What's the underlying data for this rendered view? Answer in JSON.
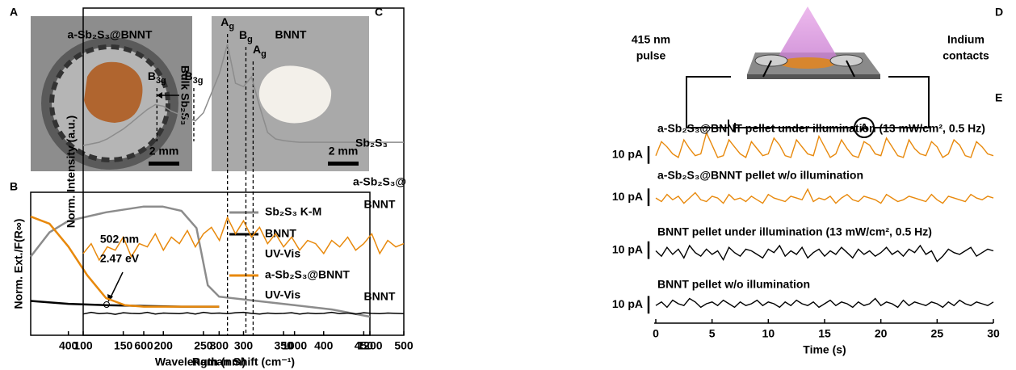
{
  "panel_letters": [
    "A",
    "B",
    "C",
    "D",
    "E"
  ],
  "photos": {
    "left": {
      "title": "a-Sb₂S₃@BNNT",
      "side_label": "Bulk Sb₂S₃",
      "scale": "2 mm"
    },
    "right": {
      "title": "BNNT",
      "scale": "2 mm"
    }
  },
  "diagram": {
    "source_lines": [
      "415 nm",
      "pulse"
    ],
    "contact_lines": [
      "Indium",
      "contacts"
    ],
    "meter": "A"
  },
  "chart_data": [
    {
      "type": "line",
      "xlabel": "Wavelength (nm)",
      "ylabel": "Norm. Ext./F(R∞)",
      "xlim": [
        300,
        1200
      ],
      "xticks": [
        400,
        600,
        800,
        1000,
        1200
      ],
      "ylim": [
        0,
        1
      ],
      "legend": "right",
      "annotations": [
        "502 nm",
        "2.47 eV"
      ],
      "series": [
        {
          "name_lines": [
            "Sb₂S₃ K-M"
          ],
          "color": "#8c8c8c",
          "x": [
            300,
            350,
            400,
            500,
            600,
            650,
            700,
            740,
            770,
            800,
            900,
            1000,
            1100,
            1200
          ],
          "values": [
            0.55,
            0.72,
            0.8,
            0.86,
            0.9,
            0.9,
            0.87,
            0.75,
            0.35,
            0.27,
            0.24,
            0.21,
            0.18,
            0.13
          ]
        },
        {
          "name_lines": [
            "BNNT",
            "UV-Vis"
          ],
          "color": "#000000",
          "x": [
            300,
            400,
            500,
            600,
            700,
            800
          ],
          "values": [
            0.24,
            0.22,
            0.21,
            0.205,
            0.2,
            0.2
          ]
        },
        {
          "name_lines": [
            "a-Sb₂S₃@BNNT",
            "UV-Vis"
          ],
          "color": "#e8890c",
          "x": [
            300,
            350,
            400,
            450,
            500,
            550,
            600,
            700,
            800
          ],
          "values": [
            0.83,
            0.78,
            0.62,
            0.42,
            0.26,
            0.21,
            0.2,
            0.2,
            0.2
          ]
        }
      ]
    },
    {
      "type": "line",
      "xlabel": "Raman Shift (cm⁻¹)",
      "ylabel": "Norm. Intensity (a.u.)",
      "xlim": [
        100,
        500
      ],
      "xticks": [
        100,
        150,
        200,
        250,
        300,
        350,
        400,
        450,
        500
      ],
      "ylim": [
        0,
        1
      ],
      "x": [
        100,
        110,
        120,
        130,
        140,
        150,
        160,
        170,
        180,
        190,
        200,
        210,
        220,
        230,
        240,
        250,
        260,
        270,
        280,
        290,
        300,
        310,
        320,
        330,
        340,
        350,
        360,
        370,
        380,
        390,
        400,
        410,
        420,
        430,
        440,
        450,
        460,
        470,
        480,
        490,
        500
      ],
      "peaks": [
        {
          "x": 192,
          "label": {
            "main": "B",
            "sub": "3g"
          }
        },
        {
          "x": 238,
          "label": {
            "main": "B",
            "sub": "3g"
          }
        },
        {
          "x": 280,
          "label": {
            "main": "A",
            "sub": "g"
          }
        },
        {
          "x": 303,
          "label": {
            "main": "B",
            "sub": "g"
          }
        },
        {
          "x": 312,
          "label": {
            "main": "A",
            "sub": "g"
          }
        }
      ],
      "series": [
        {
          "name_lines": [
            "Sb₂S₃"
          ],
          "color": "#8c8c8c",
          "values": [
            0.58,
            0.585,
            0.59,
            0.6,
            0.615,
            0.63,
            0.65,
            0.67,
            0.69,
            0.705,
            0.7,
            0.685,
            0.675,
            0.665,
            0.655,
            0.68,
            0.74,
            0.8,
            0.89,
            0.77,
            0.76,
            0.79,
            0.7,
            0.62,
            0.6,
            0.595,
            0.592,
            0.59,
            0.59,
            0.59,
            0.59,
            0.59,
            0.59,
            0.59,
            0.59,
            0.59,
            0.59,
            0.59,
            0.59,
            0.59,
            0.59
          ]
        },
        {
          "name_lines": [
            "a-Sb₂S₃@",
            "BNNT"
          ],
          "color": "#e8890c",
          "values": [
            0.25,
            0.28,
            0.23,
            0.27,
            0.26,
            0.3,
            0.24,
            0.28,
            0.27,
            0.31,
            0.26,
            0.3,
            0.28,
            0.32,
            0.27,
            0.31,
            0.33,
            0.29,
            0.36,
            0.31,
            0.35,
            0.3,
            0.33,
            0.28,
            0.31,
            0.27,
            0.3,
            0.26,
            0.29,
            0.28,
            0.25,
            0.29,
            0.27,
            0.3,
            0.26,
            0.28,
            0.31,
            0.25,
            0.29,
            0.27,
            0.28
          ]
        },
        {
          "name_lines": [
            "BNNT"
          ],
          "color": "#000000",
          "values": [
            0.065,
            0.07,
            0.066,
            0.068,
            0.064,
            0.069,
            0.067,
            0.066,
            0.07,
            0.065,
            0.068,
            0.067,
            0.066,
            0.069,
            0.065,
            0.07,
            0.067,
            0.068,
            0.066,
            0.069,
            0.07,
            0.067,
            0.065,
            0.068,
            0.066,
            0.067,
            0.069,
            0.065,
            0.068,
            0.066,
            0.067,
            0.07,
            0.066,
            0.068,
            0.065,
            0.069,
            0.067,
            0.066,
            0.068,
            0.067,
            0.066
          ]
        }
      ]
    },
    {
      "type": "line",
      "xlabel": "Time (s)",
      "xlim": [
        0,
        30
      ],
      "xticks": [
        0,
        5,
        10,
        15,
        20,
        25,
        30
      ],
      "ylim": [
        0,
        110
      ],
      "x": [
        0,
        0.5,
        1,
        1.5,
        2,
        2.5,
        3,
        3.5,
        4,
        4.5,
        5,
        5.5,
        6,
        6.5,
        7,
        7.5,
        8,
        8.5,
        9,
        9.5,
        10,
        10.5,
        11,
        11.5,
        12,
        12.5,
        13,
        13.5,
        14,
        14.5,
        15,
        15.5,
        16,
        16.5,
        17,
        17.5,
        18,
        18.5,
        19,
        19.5,
        20,
        20.5,
        21,
        21.5,
        22,
        22.5,
        23,
        23.5,
        24,
        24.5,
        25,
        25.5,
        26,
        26.5,
        27,
        27.5,
        28,
        28.5,
        29,
        29.5,
        30
      ],
      "series": [
        {
          "name": "a-Sb₂S₃@BNNT pellet under illumination (13 mW/cm², 0.5 Hz)",
          "color": "#e8890c",
          "scale_bar": {
            "value": 10,
            "label": "10 pA"
          },
          "values": [
            95,
            103,
            100,
            96,
            94,
            104,
            99,
            95,
            96,
            108,
            101,
            94,
            95,
            104,
            100,
            96,
            94,
            103,
            99,
            95,
            96,
            105,
            101,
            95,
            94,
            104,
            100,
            96,
            95,
            106,
            100,
            94,
            96,
            104,
            99,
            95,
            94,
            103,
            101,
            96,
            95,
            105,
            100,
            95,
            94,
            104,
            99,
            96,
            95,
            103,
            100,
            94,
            96,
            104,
            101,
            95,
            94,
            103,
            100,
            96,
            95
          ]
        },
        {
          "name": "a-Sb₂S₃@BNNT pellet w/o illumination",
          "color": "#e8890c",
          "scale_bar": {
            "value": 10,
            "label": "10 pA"
          },
          "values": [
            71,
            69,
            73,
            70,
            72,
            68,
            71,
            74,
            70,
            69,
            72,
            71,
            68,
            73,
            70,
            71,
            69,
            72,
            70,
            68,
            73,
            71,
            70,
            69,
            72,
            71,
            70,
            76,
            69,
            71,
            70,
            72,
            68,
            71,
            73,
            70,
            69,
            72,
            71,
            70,
            68,
            73,
            71,
            69,
            70,
            72,
            71,
            70,
            69,
            73,
            70,
            68,
            72,
            71,
            70,
            69,
            73,
            71,
            70,
            72,
            71
          ]
        },
        {
          "name": "BNNT pellet under illumination (13 mW/cm², 0.5 Hz)",
          "color": "#000000",
          "scale_bar": {
            "value": 10,
            "label": "10 pA"
          },
          "values": [
            41,
            38,
            43,
            39,
            42,
            37,
            44,
            40,
            38,
            42,
            39,
            41,
            36,
            43,
            40,
            38,
            42,
            41,
            39,
            37,
            42,
            40,
            44,
            38,
            41,
            39,
            43,
            37,
            40,
            42,
            38,
            41,
            39,
            43,
            40,
            37,
            42,
            39,
            41,
            38,
            40,
            43,
            39,
            41,
            38,
            42,
            40,
            44,
            39,
            41,
            35,
            38,
            42,
            40,
            39,
            41,
            43,
            38,
            40,
            42,
            41
          ]
        },
        {
          "name": "BNNT pellet w/o illumination",
          "color": "#000000",
          "scale_bar": {
            "value": 10,
            "label": "10 pA"
          },
          "values": [
            10,
            12,
            9,
            13,
            11,
            10,
            14,
            12,
            9,
            11,
            12,
            10,
            13,
            11,
            9,
            12,
            10,
            11,
            13,
            10,
            12,
            11,
            9,
            12,
            10,
            13,
            11,
            10,
            12,
            9,
            11,
            13,
            10,
            12,
            11,
            9,
            12,
            10,
            11,
            14,
            10,
            12,
            11,
            9,
            13,
            10,
            12,
            11,
            10,
            12,
            11,
            9,
            12,
            10,
            13,
            11,
            10,
            12,
            11,
            10,
            12
          ]
        }
      ]
    }
  ]
}
